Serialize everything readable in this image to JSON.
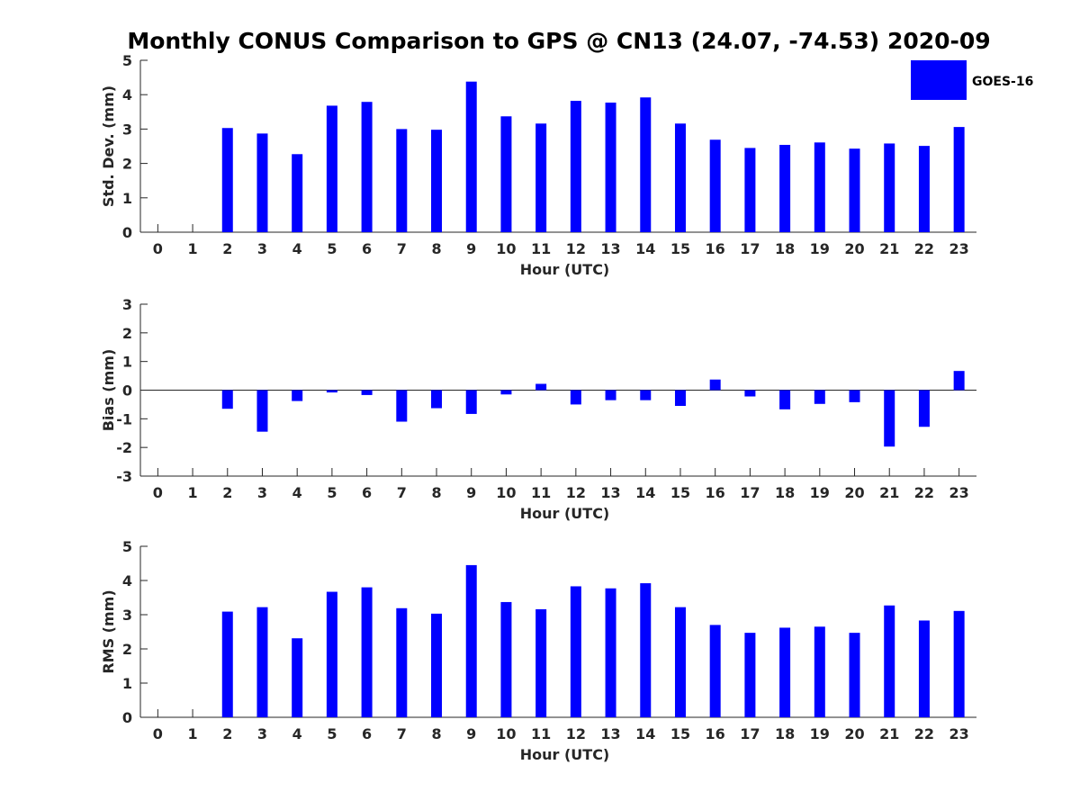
{
  "figure": {
    "title": "Monthly CONUS Comparison to GPS @ CN13 (24.07, -74.53) 2020-09"
  },
  "legend": {
    "label": "GOES-16",
    "color": "#0000ff",
    "position": "top-right"
  },
  "chart_data": [
    {
      "type": "bar",
      "ylabel": "Std. Dev. (mm)",
      "xlabel": "Hour (UTC)",
      "ylim": [
        0,
        5
      ],
      "yticks": [
        0,
        1,
        2,
        3,
        4,
        5
      ],
      "xlim": [
        -0.5,
        23.5
      ],
      "categories": [
        0,
        1,
        2,
        3,
        4,
        5,
        6,
        7,
        8,
        9,
        10,
        11,
        12,
        13,
        14,
        15,
        16,
        17,
        18,
        19,
        20,
        21,
        22,
        23
      ],
      "series": [
        {
          "name": "GOES-16",
          "color": "#0000ff",
          "values": [
            null,
            null,
            3.03,
            2.87,
            2.27,
            3.68,
            3.79,
            3.0,
            2.98,
            4.38,
            3.37,
            3.16,
            3.82,
            3.77,
            3.92,
            3.16,
            2.69,
            2.45,
            2.54,
            2.61,
            2.43,
            2.58,
            2.51,
            3.06
          ]
        }
      ],
      "grid": false
    },
    {
      "type": "bar",
      "ylabel": "Bias (mm)",
      "xlabel": "Hour (UTC)",
      "ylim": [
        -3,
        3
      ],
      "yticks": [
        -3,
        -2,
        -1,
        0,
        1,
        2,
        3
      ],
      "xlim": [
        -0.5,
        23.5
      ],
      "categories": [
        0,
        1,
        2,
        3,
        4,
        5,
        6,
        7,
        8,
        9,
        10,
        11,
        12,
        13,
        14,
        15,
        16,
        17,
        18,
        19,
        20,
        21,
        22,
        23
      ],
      "series": [
        {
          "name": "GOES-16",
          "color": "#0000ff",
          "values": [
            null,
            null,
            -0.65,
            -1.45,
            -0.38,
            -0.08,
            -0.17,
            -1.1,
            -0.63,
            -0.83,
            -0.15,
            0.22,
            -0.5,
            -0.35,
            -0.35,
            -0.55,
            0.37,
            -0.22,
            -0.67,
            -0.48,
            -0.42,
            -1.97,
            -1.28,
            0.67
          ]
        }
      ],
      "grid": false
    },
    {
      "type": "bar",
      "ylabel": "RMS (mm)",
      "xlabel": "Hour (UTC)",
      "ylim": [
        0,
        5
      ],
      "yticks": [
        0,
        1,
        2,
        3,
        4,
        5
      ],
      "xlim": [
        -0.5,
        23.5
      ],
      "categories": [
        0,
        1,
        2,
        3,
        4,
        5,
        6,
        7,
        8,
        9,
        10,
        11,
        12,
        13,
        14,
        15,
        16,
        17,
        18,
        19,
        20,
        21,
        22,
        23
      ],
      "series": [
        {
          "name": "GOES-16",
          "color": "#0000ff",
          "values": [
            null,
            null,
            3.09,
            3.22,
            2.31,
            3.67,
            3.8,
            3.19,
            3.03,
            4.45,
            3.37,
            3.16,
            3.83,
            3.77,
            3.92,
            3.22,
            2.7,
            2.47,
            2.62,
            2.65,
            2.47,
            3.27,
            2.83,
            3.11
          ]
        }
      ],
      "grid": false
    }
  ]
}
